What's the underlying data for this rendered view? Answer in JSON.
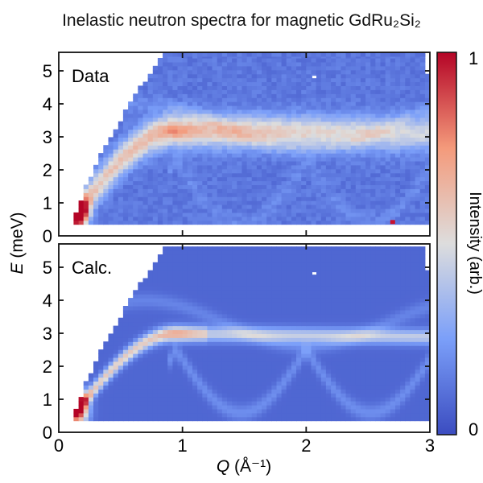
{
  "title": "Inelastic neutron spectra for magnetic GdRu₂Si₂",
  "chart_data": {
    "type": "heatmap",
    "title": "Inelastic neutron spectra for magnetic GdRu₂Si₂",
    "xlabel_var": "Q",
    "xlabel_unit": "(Å⁻¹)",
    "ylabel_var": "E",
    "ylabel_unit": "(meV)",
    "xlim": [
      0,
      3
    ],
    "ylim": [
      0,
      5.55
    ],
    "xticks": [
      "0",
      "1",
      "2",
      "3"
    ],
    "yticks": [
      "0",
      "1",
      "2",
      "3",
      "4",
      "5"
    ],
    "panels": [
      {
        "label": "Data",
        "band_energy_meV": 3.2,
        "band_max_at_Q": 0.95,
        "low_energy_hotspot": [
          0.15,
          0.7
        ]
      },
      {
        "label": "Calc.",
        "band_energy_meV": 3.0,
        "band_max_at_Q": 0.95,
        "low_energy_hotspot": [
          0.15,
          0.7
        ]
      }
    ],
    "colorbar": {
      "label": "Intensity (arb.)",
      "min_label": "0",
      "max_label": "1",
      "range": [
        0,
        1
      ],
      "colormap": "coolwarm",
      "colors": [
        "#3b4cc0",
        "#dddddd",
        "#b40426"
      ]
    }
  }
}
